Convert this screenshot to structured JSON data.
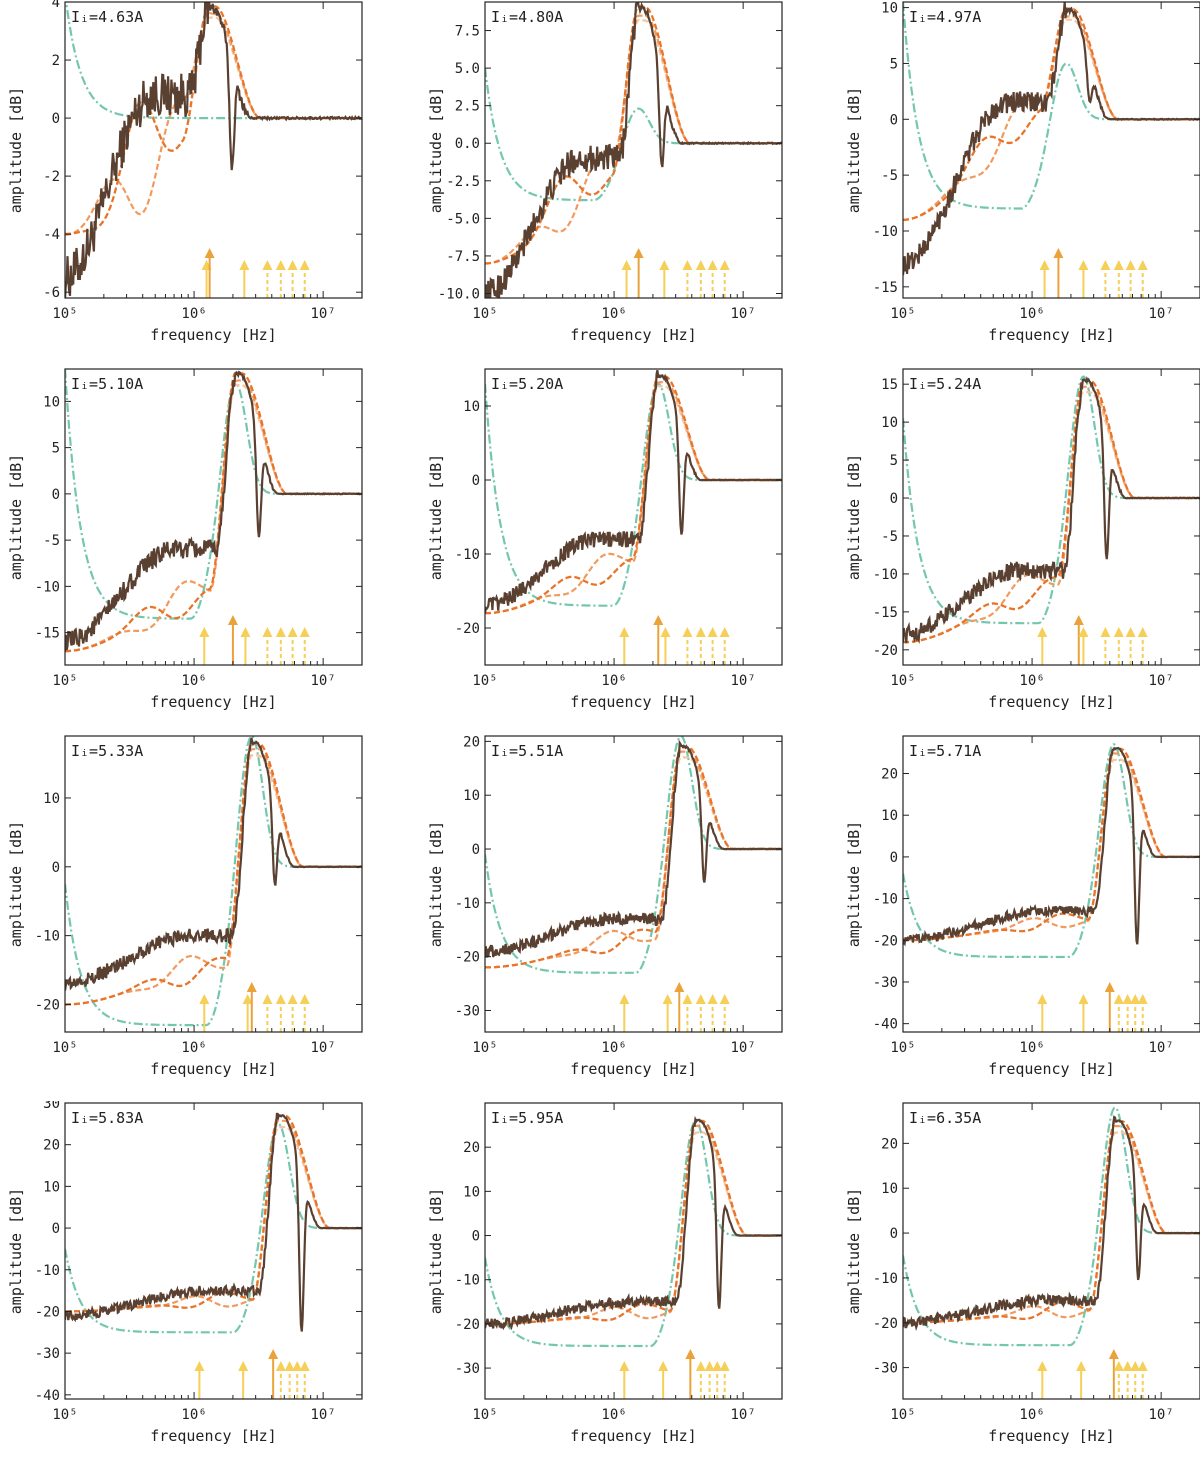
{
  "chart_data": [
    {
      "type": "line",
      "label": "Iᵢ=4.63A",
      "xlabel": "frequency [Hz]",
      "ylabel": "amplitude [dB]",
      "xscale": "log",
      "xlim": [
        100000,
        20000000
      ],
      "ylim": [
        -6.2,
        4.0
      ],
      "yticks": [
        -6,
        -4,
        -2,
        0,
        2,
        4
      ],
      "xtick_labels": [
        "10⁵",
        "10⁶",
        "10⁷"
      ],
      "resonance_f": 1300000,
      "peak_db": 3.8,
      "low_db": -5.5,
      "dip_db": -2.1,
      "fit_low_db": -4.0,
      "mode_peak_db": 0.8,
      "fit_mode_peak_db": 0.0,
      "green_start_db": 4.3,
      "green_peak_db": 0.0,
      "green_low_db": 0.0,
      "arrows_solid": [
        1250000,
        1320000,
        2450000
      ],
      "arrows_tall": [
        1320000
      ],
      "arrows_dashed": [
        3700000,
        4700000,
        5800000,
        7200000
      ]
    },
    {
      "type": "line",
      "label": "Iᵢ=4.80A",
      "xlabel": "frequency [Hz]",
      "ylabel": "amplitude [dB]",
      "xscale": "log",
      "xlim": [
        100000,
        20000000
      ],
      "ylim": [
        -10.3,
        9.4
      ],
      "yticks": [
        -10.0,
        -7.5,
        -5.0,
        -2.5,
        0.0,
        2.5,
        5.0,
        7.5
      ],
      "xtick_labels": [
        "10⁵",
        "10⁶",
        "10⁷"
      ],
      "resonance_f": 1550000,
      "peak_db": 9.0,
      "low_db": -10.0,
      "dip_db": -2.3,
      "fit_low_db": -8.0,
      "mode_peak_db": -1.0,
      "fit_mode_peak_db": -1.5,
      "green_start_db": 5.0,
      "green_peak_db": 2.3,
      "green_low_db": -3.8,
      "arrows_solid": [
        1250000,
        1550000,
        2450000
      ],
      "arrows_tall": [
        1550000
      ],
      "arrows_dashed": [
        3700000,
        4700000,
        5800000,
        7200000
      ]
    },
    {
      "type": "line",
      "label": "Iᵢ=4.97A",
      "xlabel": "frequency [Hz]",
      "ylabel": "amplitude [dB]",
      "xscale": "log",
      "xlim": [
        100000,
        20000000
      ],
      "ylim": [
        -16,
        10.5
      ],
      "yticks": [
        -15,
        -10,
        -5,
        0,
        5,
        10
      ],
      "xtick_labels": [
        "10⁵",
        "10⁶",
        "10⁷"
      ],
      "resonance_f": 1850000,
      "peak_db": 9.8,
      "low_db": -13.0,
      "dip_db": 1.2,
      "fit_low_db": -9.0,
      "mode_peak_db": 1.5,
      "fit_mode_peak_db": 1.0,
      "green_start_db": 10.5,
      "green_peak_db": 5.0,
      "green_low_db": -8.0,
      "arrows_solid": [
        1250000,
        1600000,
        2500000
      ],
      "arrows_tall": [
        1600000
      ],
      "arrows_dashed": [
        3700000,
        4700000,
        5800000,
        7200000
      ]
    },
    {
      "type": "line",
      "label": "Iᵢ=5.10A",
      "xlabel": "frequency [Hz]",
      "ylabel": "amplitude [dB]",
      "xscale": "log",
      "xlim": [
        100000,
        20000000
      ],
      "ylim": [
        -18.5,
        13.5
      ],
      "yticks": [
        -15,
        -10,
        -5,
        0,
        5,
        10
      ],
      "xtick_labels": [
        "10⁵",
        "10⁶",
        "10⁷"
      ],
      "resonance_f": 2100000,
      "peak_db": 13.0,
      "low_db": -16.0,
      "dip_db": -6.0,
      "fit_low_db": -17.0,
      "mode_peak_db": -6.0,
      "fit_mode_peak_db": -10.5,
      "green_start_db": 13.5,
      "green_peak_db": 12.0,
      "green_low_db": -13.5,
      "arrows_solid": [
        1200000,
        2000000,
        2500000
      ],
      "arrows_tall": [
        2000000
      ],
      "arrows_dashed": [
        3700000,
        4700000,
        5800000,
        7200000
      ]
    },
    {
      "type": "line",
      "label": "Iᵢ=5.20A",
      "xlabel": "frequency [Hz]",
      "ylabel": "amplitude [dB]",
      "xscale": "log",
      "xlim": [
        100000,
        20000000
      ],
      "ylim": [
        -25,
        15
      ],
      "yticks": [
        -20,
        -10,
        0,
        10
      ],
      "xtick_labels": [
        "10⁵",
        "10⁶",
        "10⁷"
      ],
      "resonance_f": 2200000,
      "peak_db": 14.0,
      "low_db": -17.0,
      "dip_db": -9.0,
      "fit_low_db": -18.0,
      "mode_peak_db": -8.0,
      "fit_mode_peak_db": -11.0,
      "green_start_db": 13.0,
      "green_peak_db": 13.0,
      "green_low_db": -17.0,
      "arrows_solid": [
        1200000,
        2200000,
        2500000
      ],
      "arrows_tall": [
        2200000
      ],
      "arrows_dashed": [
        3700000,
        4700000,
        5800000,
        7200000
      ]
    },
    {
      "type": "line",
      "label": "Iᵢ=5.24A",
      "xlabel": "frequency [Hz]",
      "ylabel": "amplitude [dB]",
      "xscale": "log",
      "xlim": [
        100000,
        20000000
      ],
      "ylim": [
        -22,
        17
      ],
      "yticks": [
        -20,
        -15,
        -10,
        -5,
        0,
        5,
        10,
        15
      ],
      "xtick_labels": [
        "10⁵",
        "10⁶",
        "10⁷"
      ],
      "resonance_f": 2500000,
      "peak_db": 15.5,
      "low_db": -18.0,
      "dip_db": -10.0,
      "fit_low_db": -19.0,
      "mode_peak_db": -9.5,
      "fit_mode_peak_db": -11.0,
      "green_start_db": 10.5,
      "green_peak_db": 16.0,
      "green_low_db": -16.5,
      "arrows_solid": [
        1200000,
        2300000,
        2500000
      ],
      "arrows_tall": [
        2300000
      ],
      "arrows_dashed": [
        3700000,
        4700000,
        5800000,
        7200000
      ]
    },
    {
      "type": "line",
      "label": "Iᵢ=5.33A",
      "xlabel": "frequency [Hz]",
      "ylabel": "amplitude [dB]",
      "xscale": "log",
      "xlim": [
        100000,
        20000000
      ],
      "ylim": [
        -24,
        19
      ],
      "yticks": [
        -20,
        -10,
        0,
        10
      ],
      "xtick_labels": [
        "10⁵",
        "10⁶",
        "10⁷"
      ],
      "resonance_f": 2800000,
      "peak_db": 18.0,
      "low_db": -17.0,
      "dip_db": -4.0,
      "fit_low_db": -20.0,
      "mode_peak_db": -10.0,
      "fit_mode_peak_db": -14.0,
      "green_start_db": -2.5,
      "green_peak_db": 19.0,
      "green_low_db": -23.0,
      "arrows_solid": [
        1200000,
        2600000,
        2800000
      ],
      "arrows_tall": [
        2800000
      ],
      "arrows_dashed": [
        3700000,
        4700000,
        5800000,
        7200000
      ]
    },
    {
      "type": "line",
      "label": "Iᵢ=5.51A",
      "xlabel": "frequency [Hz]",
      "ylabel": "amplitude [dB]",
      "xscale": "log",
      "xlim": [
        100000,
        20000000
      ],
      "ylim": [
        -34,
        21
      ],
      "yticks": [
        -30,
        -20,
        -10,
        0,
        10,
        20
      ],
      "xtick_labels": [
        "10⁵",
        "10⁶",
        "10⁷"
      ],
      "resonance_f": 3300000,
      "peak_db": 19.0,
      "low_db": -19.0,
      "dip_db": -8.0,
      "fit_low_db": -22.0,
      "mode_peak_db": -13.0,
      "fit_mode_peak_db": -16.0,
      "green_start_db": -1.0,
      "green_peak_db": 21.0,
      "green_low_db": -23.0,
      "arrows_solid": [
        1200000,
        2600000,
        3200000
      ],
      "arrows_tall": [
        3200000
      ],
      "arrows_dashed": [
        3700000,
        4700000,
        5800000,
        7200000
      ]
    },
    {
      "type": "line",
      "label": "Iᵢ=5.71A",
      "xlabel": "frequency [Hz]",
      "ylabel": "amplitude [dB]",
      "xscale": "log",
      "xlim": [
        100000,
        20000000
      ],
      "ylim": [
        -42,
        29
      ],
      "yticks": [
        -40,
        -30,
        -20,
        -10,
        0,
        10,
        20
      ],
      "xtick_labels": [
        "10⁵",
        "10⁶",
        "10⁷"
      ],
      "resonance_f": 4300000,
      "peak_db": 26.0,
      "low_db": -20.0,
      "dip_db": -25.0,
      "fit_low_db": -20.0,
      "mode_peak_db": -13.0,
      "fit_mode_peak_db": -15.0,
      "green_start_db": -4.0,
      "green_peak_db": 27.0,
      "green_low_db": -24.0,
      "arrows_solid": [
        1200000,
        2500000,
        4000000
      ],
      "arrows_tall": [
        4000000
      ],
      "arrows_dashed": [
        4700000,
        5500000,
        6300000,
        7200000
      ]
    },
    {
      "type": "line",
      "label": "Iᵢ=5.83A",
      "xlabel": "frequency [Hz]",
      "ylabel": "amplitude [dB]",
      "xscale": "log",
      "xlim": [
        100000,
        20000000
      ],
      "ylim": [
        -41,
        30
      ],
      "yticks": [
        -40,
        -30,
        -20,
        -10,
        0,
        10,
        20,
        30
      ],
      "xtick_labels": [
        "10⁵",
        "10⁶",
        "10⁷"
      ],
      "resonance_f": 4500000,
      "peak_db": 27.0,
      "low_db": -21.0,
      "dip_db": -29.0,
      "fit_low_db": -20.0,
      "mode_peak_db": -15.0,
      "fit_mode_peak_db": -17.0,
      "green_start_db": -5.0,
      "green_peak_db": 25.0,
      "green_low_db": -25.0,
      "arrows_solid": [
        1100000,
        2400000,
        4100000
      ],
      "arrows_tall": [
        4100000
      ],
      "arrows_dashed": [
        4700000,
        5500000,
        6300000,
        7200000
      ]
    },
    {
      "type": "line",
      "label": "Iᵢ=5.95A",
      "xlabel": "frequency [Hz]",
      "ylabel": "amplitude [dB]",
      "xscale": "log",
      "xlim": [
        100000,
        20000000
      ],
      "ylim": [
        -37,
        30
      ],
      "yticks": [
        -30,
        -20,
        -10,
        0,
        10,
        20
      ],
      "xtick_labels": [
        "10⁵",
        "10⁶",
        "10⁷"
      ],
      "resonance_f": 4300000,
      "peak_db": 26.0,
      "low_db": -20.0,
      "dip_db": -20.0,
      "fit_low_db": -20.0,
      "mode_peak_db": -15.0,
      "fit_mode_peak_db": -17.0,
      "green_start_db": -5.0,
      "green_peak_db": 26.0,
      "green_low_db": -25.0,
      "arrows_solid": [
        1200000,
        2400000,
        3900000
      ],
      "arrows_tall": [
        3900000
      ],
      "arrows_dashed": [
        4700000,
        5500000,
        6300000,
        7200000
      ]
    },
    {
      "type": "line",
      "label": "Iᵢ=6.35A",
      "xlabel": "frequency [Hz]",
      "ylabel": "amplitude [dB]",
      "xscale": "log",
      "xlim": [
        100000,
        20000000
      ],
      "ylim": [
        -37,
        29
      ],
      "yticks": [
        -30,
        -20,
        -10,
        0,
        10,
        20
      ],
      "xtick_labels": [
        "10⁵",
        "10⁶",
        "10⁷"
      ],
      "resonance_f": 4400000,
      "peak_db": 25.0,
      "low_db": -20.0,
      "dip_db": -13.0,
      "fit_low_db": -20.0,
      "mode_peak_db": -15.0,
      "fit_mode_peak_db": -17.0,
      "green_start_db": -5.0,
      "green_peak_db": 28.0,
      "green_low_db": -25.0,
      "arrows_solid": [
        1200000,
        2400000,
        4300000
      ],
      "arrows_tall": [
        4300000
      ],
      "arrows_dashed": [
        4700000,
        5500000,
        6300000,
        7200000
      ]
    }
  ],
  "colors": {
    "measured": "#5a4031",
    "fit_dark": "#e8742a",
    "fit_mid": "#f19a5e",
    "fit_light": "#f6c6a2",
    "model": "#74c7ad",
    "arrow": "#f5cf57",
    "arrow_tall": "#eaa23a"
  }
}
